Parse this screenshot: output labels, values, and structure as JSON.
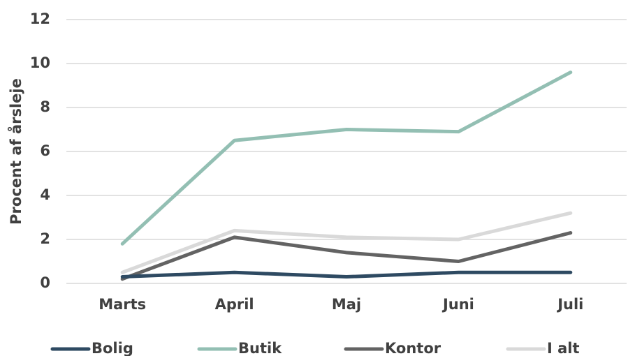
{
  "chart_data": {
    "type": "line",
    "y_label": "Procent af årsleje",
    "categories": [
      "Marts",
      "April",
      "Maj",
      "Juni",
      "Juli"
    ],
    "series": [
      {
        "name": "Bolig",
        "color": "#2e4a62",
        "values": [
          0.3,
          0.5,
          0.3,
          0.5,
          0.5
        ]
      },
      {
        "name": "Butik",
        "color": "#93bfb3",
        "values": [
          1.8,
          6.5,
          7.0,
          6.9,
          9.6
        ]
      },
      {
        "name": "Kontor",
        "color": "#636363",
        "values": [
          0.2,
          2.1,
          1.4,
          1.0,
          2.3
        ]
      },
      {
        "name": "I alt",
        "color": "#d9d9d9",
        "values": [
          0.5,
          2.4,
          2.1,
          2.0,
          3.2
        ]
      }
    ],
    "ylim": [
      0,
      12
    ],
    "yticks": [
      0,
      2,
      4,
      6,
      8,
      10,
      12
    ],
    "grid": true,
    "legend": "bottom"
  }
}
